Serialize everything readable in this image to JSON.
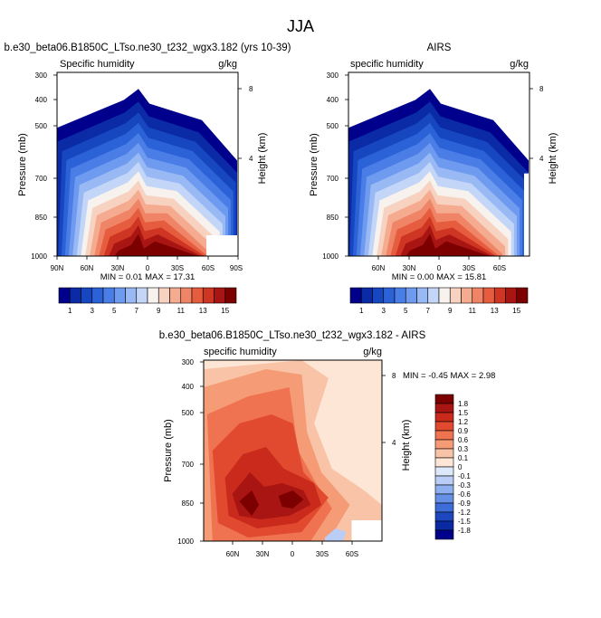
{
  "figure": {
    "title": "JJA"
  },
  "chart_data": [
    {
      "type": "contour",
      "title": "b.e30_beta06.B1850C_LTso.ne30_t232_wgx3.182 (yrs 10-39)",
      "left_subtitle": "Specific humidity",
      "right_subtitle": "g/kg",
      "ylabel": "Pressure (mb)",
      "right_ylabel": "Height (km)",
      "yticks": [
        "300",
        "400",
        "500",
        "700",
        "850",
        "1000"
      ],
      "right_yticks": [
        "8",
        "4"
      ],
      "xticks": [
        "90N",
        "60N",
        "30N",
        "0",
        "30S",
        "60S",
        "90S"
      ],
      "stats": "MIN =  0.01  MAX =  17.31",
      "xlim": [
        "90N",
        "90S"
      ],
      "ylim": [
        1000,
        300
      ],
      "max_value": 17.31,
      "min_value": 0.01,
      "colorbar_labels": [
        "1",
        "3",
        "5",
        "7",
        "9",
        "11",
        "13",
        "15"
      ]
    },
    {
      "type": "contour",
      "title": "AIRS",
      "left_subtitle": "specific humidity",
      "right_subtitle": "g/kg",
      "ylabel": "Pressure (mb)",
      "right_ylabel": "Height (km)",
      "yticks": [
        "300",
        "400",
        "500",
        "700",
        "850",
        "1000"
      ],
      "right_yticks": [
        "8",
        "4"
      ],
      "xticks": [
        "60N",
        "30N",
        "0",
        "30S",
        "60S"
      ],
      "stats": "MIN =  0.00  MAX =  15.81",
      "ylim": [
        1000,
        300
      ],
      "max_value": 15.81,
      "min_value": 0.0,
      "colorbar_labels": [
        "1",
        "3",
        "5",
        "7",
        "9",
        "11",
        "13",
        "15"
      ]
    },
    {
      "type": "contour",
      "title": "b.e30_beta06.B1850C_LTso.ne30_t232_wgx3.182 - AIRS",
      "left_subtitle": "specific humidity",
      "right_subtitle": "g/kg",
      "ylabel": "Pressure (mb)",
      "right_ylabel": "Height (km)",
      "yticks": [
        "300",
        "400",
        "500",
        "700",
        "850",
        "1000"
      ],
      "right_yticks": [
        "8",
        "4"
      ],
      "xticks": [
        "60N",
        "30N",
        "0",
        "30S",
        "60S"
      ],
      "stats": "MIN = -0.45  MAX =   2.98",
      "ylim": [
        1000,
        300
      ],
      "max_value": 2.98,
      "min_value": -0.45,
      "colorbar_labels": [
        "1.8",
        "1.5",
        "1.2",
        "0.9",
        "0.6",
        "0.3",
        "0.1",
        "0",
        "-0.1",
        "-0.3",
        "-0.6",
        "-0.9",
        "-1.2",
        "-1.5",
        "-1.8"
      ]
    }
  ],
  "colors": {
    "abs_scale": [
      "#00008c",
      "#0a2aa6",
      "#1747c0",
      "#2b62d8",
      "#4a7ee6",
      "#6e9aef",
      "#98b9f4",
      "#c4d6f8",
      "#f7f2ee",
      "#f7d2c0",
      "#f5ab90",
      "#ef8566",
      "#e65c3e",
      "#cf3523",
      "#a81512",
      "#7c0000"
    ],
    "diff_scale": [
      "#7c0000",
      "#a81512",
      "#c92a1c",
      "#e14a2e",
      "#ef7350",
      "#f59b76",
      "#f8c3a6",
      "#fde6d6",
      "#dde8fa",
      "#b9cdf6",
      "#8fb0f0",
      "#6690e6",
      "#3d6dd9",
      "#1c47bf",
      "#0a2aa3",
      "#00008c"
    ]
  }
}
